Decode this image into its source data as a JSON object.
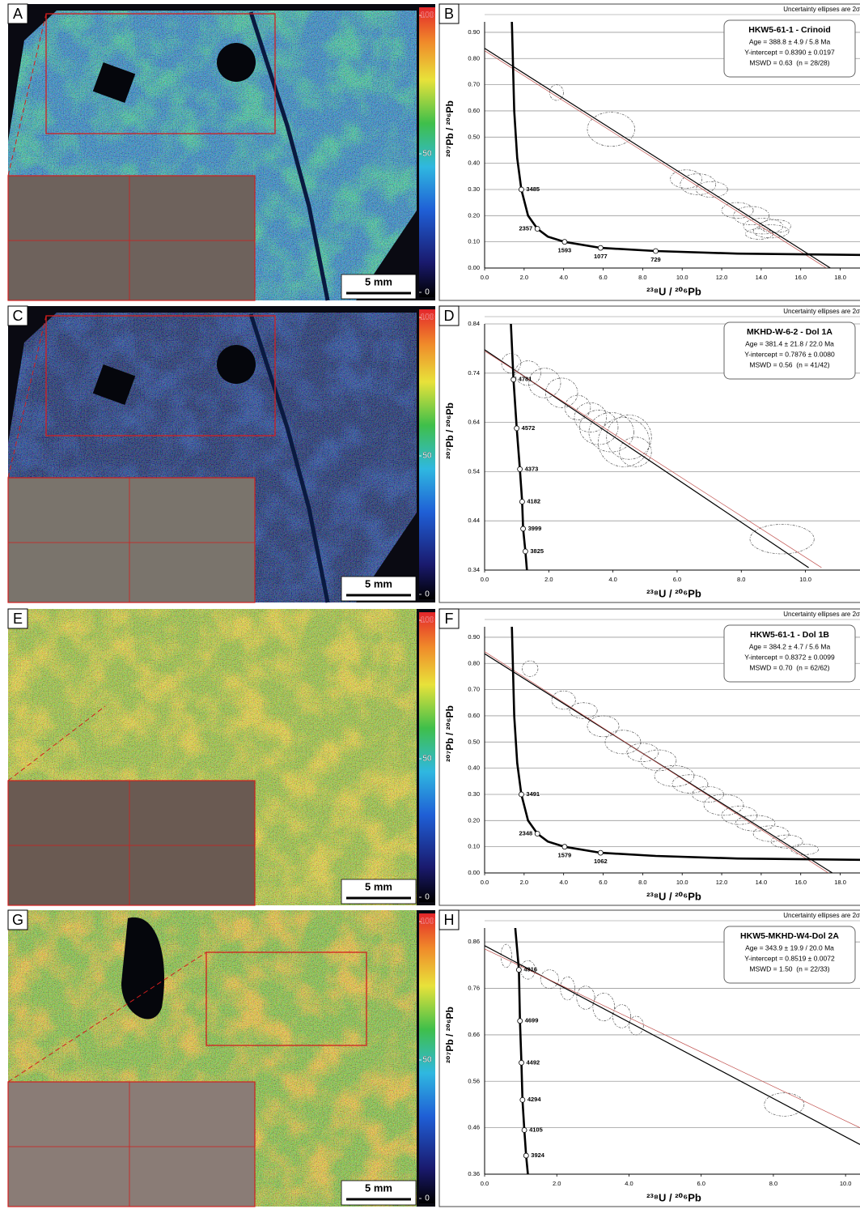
{
  "maps": [
    {
      "label": "A",
      "scale_bar": "5 mm",
      "colorbar_ticks": [
        0,
        50,
        100
      ]
    },
    {
      "label": "C",
      "scale_bar": "5 mm",
      "colorbar_ticks": [
        0,
        50,
        100
      ]
    },
    {
      "label": "E",
      "scale_bar": "5 mm",
      "colorbar_ticks": [
        0,
        50,
        100
      ]
    },
    {
      "label": "G",
      "scale_bar": "5 mm",
      "colorbar_ticks": [
        0,
        50,
        100
      ]
    }
  ],
  "chart_data": [
    {
      "type": "concordia",
      "label": "B",
      "note": "Uncertainty ellipses are 2σ",
      "title": "HKW5-61-1 - Crinoid",
      "annotation": [
        "Age = 388.8 ± 4.9 / 5.8 Ma",
        "Y-intercept = 0.8390 ± 0.0197",
        "MSWD = 0.63  (n = 28/28)"
      ],
      "xlabel": "²³⁸U / ²⁰⁶Pb",
      "ylabel": "²⁰⁷Pb / ²⁰⁶Pb",
      "xlim": [
        0,
        19
      ],
      "ylim": [
        0,
        0.94
      ],
      "xticks": [
        {
          "value": 0,
          "label": "0.0"
        },
        {
          "value": 2,
          "label": "2.0"
        },
        {
          "value": 4,
          "label": "4.0"
        },
        {
          "value": 6,
          "label": "6.0"
        },
        {
          "value": 8,
          "label": "8.0"
        },
        {
          "value": 10,
          "label": "10.0"
        },
        {
          "value": 12,
          "label": "12.0"
        },
        {
          "value": 14,
          "label": "14.0"
        },
        {
          "value": 16,
          "label": "16.0"
        },
        {
          "value": 18,
          "label": "18.0"
        }
      ],
      "yticks": [
        {
          "value": 0,
          "label": "0.00"
        },
        {
          "value": 0.1,
          "label": "0.10"
        },
        {
          "value": 0.2,
          "label": "0.20"
        },
        {
          "value": 0.3,
          "label": "0.30"
        },
        {
          "value": 0.4,
          "label": "0.40"
        },
        {
          "value": 0.5,
          "label": "0.50"
        },
        {
          "value": 0.6,
          "label": "0.60"
        },
        {
          "value": 0.7,
          "label": "0.70"
        },
        {
          "value": 0.8,
          "label": "0.80"
        },
        {
          "value": 0.9,
          "label": "0.90"
        }
      ],
      "grid": true,
      "ellipse_color": "#555555",
      "ellipses": {
        "x": [
          3.64,
          6.4,
          10.2,
          10.8,
          11.5,
          12.8,
          13.5,
          14.1,
          14.7,
          14.5,
          13.9
        ],
        "y": [
          0.67,
          0.53,
          0.34,
          0.32,
          0.3,
          0.22,
          0.2,
          0.16,
          0.16,
          0.14,
          0.13
        ],
        "rx": [
          0.35,
          1.2,
          0.8,
          0.9,
          0.8,
          0.8,
          0.9,
          1.0,
          0.8,
          0.9,
          0.7
        ],
        "ry": [
          0.03,
          0.065,
          0.035,
          0.04,
          0.03,
          0.03,
          0.035,
          0.03,
          0.025,
          0.025,
          0.02
        ]
      },
      "concordia": {
        "x": [
          1.38,
          1.5,
          1.65,
          1.86,
          2.2,
          2.67,
          3.2,
          4.05,
          5.87,
          8.66,
          12.8,
          19
        ],
        "y": [
          0.94,
          0.6,
          0.42,
          0.3,
          0.2,
          0.15,
          0.12,
          0.1,
          0.077,
          0.065,
          0.055,
          0.05
        ]
      },
      "ages": {
        "x": [
          1.86,
          2.67,
          4.05,
          5.87,
          8.66
        ],
        "y": [
          0.3,
          0.15,
          0.1,
          0.077,
          0.065
        ],
        "values": [
          3485,
          2357,
          1593,
          1077,
          729
        ]
      },
      "regression": [
        {
          "color": "#000000",
          "x": [
            0,
            17.5
          ],
          "y": [
            0.839,
            0
          ]
        },
        {
          "color": "#c0504d",
          "x": [
            0,
            17.3
          ],
          "y": [
            0.83,
            0
          ]
        }
      ]
    },
    {
      "type": "concordia",
      "label": "D",
      "note": "Uncertainty ellipses are 2σ",
      "title": "MKHD-W-6-2 - Dol 1A",
      "annotation": [
        "Age = 381.4 ± 21.8 / 22.0 Ma",
        "Y-intercept = 0.7876 ± 0.0080",
        "MSWD = 0.56  (n = 41/42)"
      ],
      "xlabel": "²³⁸U / ²⁰⁶Pb",
      "ylabel": "²⁰⁷Pb / ²⁰⁶Pb",
      "xlim": [
        0,
        11.7
      ],
      "ylim": [
        0.34,
        0.84
      ],
      "xticks": [
        {
          "value": 0,
          "label": "0.0"
        },
        {
          "value": 2,
          "label": "2.0"
        },
        {
          "value": 4,
          "label": "4.0"
        },
        {
          "value": 6,
          "label": "6.0"
        },
        {
          "value": 8,
          "label": "8.0"
        },
        {
          "value": 10,
          "label": "10.0"
        }
      ],
      "yticks": [
        0.34,
        0.44,
        0.54,
        0.64,
        0.74,
        0.84
      ],
      "grid": true,
      "ellipse_color": "#555555",
      "ellipses": {
        "x": [
          0.83,
          1.35,
          1.87,
          2.4,
          2.9,
          3.3,
          3.56,
          3.95,
          4.34,
          4.7,
          4.5,
          9.27
        ],
        "y": [
          0.76,
          0.74,
          0.72,
          0.7,
          0.67,
          0.65,
          0.63,
          0.62,
          0.6,
          0.58,
          0.61,
          0.403
        ],
        "rx": [
          0.3,
          0.4,
          0.5,
          0.5,
          0.4,
          0.5,
          0.6,
          0.7,
          0.8,
          0.5,
          0.7,
          1.0
        ],
        "ry": [
          0.02,
          0.025,
          0.03,
          0.03,
          0.025,
          0.03,
          0.035,
          0.04,
          0.05,
          0.03,
          0.045,
          0.03
        ]
      },
      "concordia": {
        "x": [
          0.82,
          0.9,
          1.0,
          1.1,
          1.17,
          1.2,
          1.27,
          1.32
        ],
        "y": [
          0.84,
          0.727,
          0.628,
          0.545,
          0.479,
          0.424,
          0.378,
          0.34
        ]
      },
      "ages": {
        "x": [
          0.9,
          1.0,
          1.1,
          1.17,
          1.2,
          1.27
        ],
        "y": [
          0.727,
          0.628,
          0.545,
          0.479,
          0.424,
          0.378
        ],
        "values": [
          4781,
          4572,
          4373,
          4182,
          3999,
          3825
        ]
      },
      "regression": [
        {
          "color": "#000000",
          "x": [
            0,
            10.1
          ],
          "y": [
            0.7876,
            0.345
          ]
        },
        {
          "color": "#c0504d",
          "x": [
            0,
            10.5
          ],
          "y": [
            0.785,
            0.345
          ]
        }
      ]
    },
    {
      "type": "concordia",
      "label": "F",
      "note": "Uncertainty ellipses are 2σ",
      "title": "HKW5-61-1 - Dol 1B",
      "annotation": [
        "Age = 384.2 ± 4.7 / 5.6 Ma",
        "Y-intercept = 0.8372 ± 0.0099",
        "MSWD = 0.70  (n = 62/62)"
      ],
      "xlabel": "²³⁸U / ²⁰⁶Pb",
      "ylabel": "²⁰⁷Pb / ²⁰⁶Pb",
      "xlim": [
        0,
        19
      ],
      "ylim": [
        0,
        0.94
      ],
      "xticks": [
        {
          "value": 0,
          "label": "0.0"
        },
        {
          "value": 2,
          "label": "2.0"
        },
        {
          "value": 4,
          "label": "4.0"
        },
        {
          "value": 6,
          "label": "6.0"
        },
        {
          "value": 8,
          "label": "8.0"
        },
        {
          "value": 10,
          "label": "10.0"
        },
        {
          "value": 12,
          "label": "12.0"
        },
        {
          "value": 14,
          "label": "14.0"
        },
        {
          "value": 16,
          "label": "16.0"
        },
        {
          "value": 18,
          "label": "18.0"
        }
      ],
      "yticks": [
        {
          "value": 0,
          "label": "0.00"
        },
        {
          "value": 0.1,
          "label": "0.10"
        },
        {
          "value": 0.2,
          "label": "0.20"
        },
        {
          "value": 0.3,
          "label": "0.30"
        },
        {
          "value": 0.4,
          "label": "0.40"
        },
        {
          "value": 0.5,
          "label": "0.50"
        },
        {
          "value": 0.6,
          "label": "0.60"
        },
        {
          "value": 0.7,
          "label": "0.70"
        },
        {
          "value": 0.8,
          "label": "0.80"
        },
        {
          "value": 0.9,
          "label": "0.90"
        }
      ],
      "grid": true,
      "ellipse_color": "#555555",
      "ellipses": {
        "x": [
          2.3,
          4.0,
          5.0,
          6.0,
          7.0,
          8.0,
          8.8,
          9.6,
          10.4,
          11.3,
          12.1,
          12.9,
          13.7,
          14.5,
          15.3,
          16.2
        ],
        "y": [
          0.78,
          0.66,
          0.62,
          0.56,
          0.5,
          0.46,
          0.43,
          0.37,
          0.34,
          0.3,
          0.26,
          0.22,
          0.19,
          0.15,
          0.12,
          0.09
        ],
        "rx": [
          0.4,
          0.6,
          0.7,
          0.8,
          0.9,
          0.8,
          0.9,
          1.0,
          0.9,
          0.8,
          1.0,
          0.9,
          1.0,
          0.9,
          0.8,
          0.7
        ],
        "ry": [
          0.03,
          0.035,
          0.03,
          0.04,
          0.045,
          0.035,
          0.04,
          0.04,
          0.035,
          0.03,
          0.04,
          0.035,
          0.03,
          0.03,
          0.025,
          0.02
        ]
      },
      "concordia": {
        "x": [
          1.38,
          1.5,
          1.65,
          1.86,
          2.2,
          2.67,
          3.2,
          4.05,
          5.87,
          8.66,
          12.8,
          19
        ],
        "y": [
          0.94,
          0.6,
          0.42,
          0.3,
          0.2,
          0.15,
          0.12,
          0.1,
          0.077,
          0.065,
          0.055,
          0.05
        ]
      },
      "ages": {
        "x": [
          1.86,
          2.67,
          4.05,
          5.87
        ],
        "y": [
          0.3,
          0.15,
          0.1,
          0.077
        ],
        "values": [
          3491,
          2348,
          1579,
          1062
        ]
      },
      "regression": [
        {
          "color": "#000000",
          "x": [
            0,
            17.6
          ],
          "y": [
            0.837,
            0
          ]
        },
        {
          "color": "#c0504d",
          "x": [
            0,
            17.4
          ],
          "y": [
            0.845,
            0
          ]
        }
      ]
    },
    {
      "type": "concordia",
      "label": "H",
      "note": "Uncertainty ellipses are 2σ",
      "title": "HKW5-MKHD-W4-Dol 2A",
      "annotation": [
        "Age = 343.9 ± 19.9 / 20.0 Ma",
        "Y-intercept = 0.8519 ± 0.0072",
        "MSWD = 1.50  (n = 22/33)"
      ],
      "xlabel": "²³⁸U / ²⁰⁶Pb",
      "ylabel": "²⁰⁷Pb / ²⁰⁶Pb",
      "xlim": [
        0,
        10.4
      ],
      "ylim": [
        0.36,
        0.89
      ],
      "xticks": [
        {
          "value": 0,
          "label": "0.0"
        },
        {
          "value": 2,
          "label": "2.0"
        },
        {
          "value": 4,
          "label": "4.0"
        },
        {
          "value": 6,
          "label": "6.0"
        },
        {
          "value": 8,
          "label": "8.0"
        },
        {
          "value": 10,
          "label": "10.0"
        }
      ],
      "yticks": [
        0.36,
        0.46,
        0.56,
        0.66,
        0.76,
        0.86
      ],
      "grid": true,
      "ellipse_color": "#555555",
      "ellipses": {
        "x": [
          0.6,
          1.2,
          1.8,
          2.3,
          2.8,
          3.3,
          3.8,
          4.2,
          8.3
        ],
        "y": [
          0.83,
          0.8,
          0.78,
          0.76,
          0.74,
          0.72,
          0.7,
          0.68,
          0.51
        ],
        "rx": [
          0.15,
          0.2,
          0.25,
          0.2,
          0.25,
          0.3,
          0.25,
          0.2,
          0.55
        ],
        "ry": [
          0.025,
          0.02,
          0.02,
          0.025,
          0.025,
          0.03,
          0.025,
          0.02,
          0.025
        ]
      },
      "concordia": {
        "x": [
          0.85,
          0.95,
          0.98,
          1.02,
          1.05,
          1.1,
          1.15,
          1.2
        ],
        "y": [
          0.89,
          0.8,
          0.69,
          0.6,
          0.52,
          0.455,
          0.4,
          0.36
        ]
      },
      "ages": {
        "x": [
          0.95,
          0.98,
          1.02,
          1.05,
          1.1,
          1.15
        ],
        "y": [
          0.8,
          0.69,
          0.6,
          0.52,
          0.455,
          0.4
        ],
        "values": [
          4916,
          4699,
          4492,
          4294,
          4105,
          3924
        ]
      },
      "regression": [
        {
          "color": "#000000",
          "x": [
            0,
            10.4
          ],
          "y": [
            0.852,
            0.424
          ]
        },
        {
          "color": "#c0504d",
          "x": [
            0,
            10.4
          ],
          "y": [
            0.845,
            0.46
          ]
        }
      ]
    }
  ]
}
